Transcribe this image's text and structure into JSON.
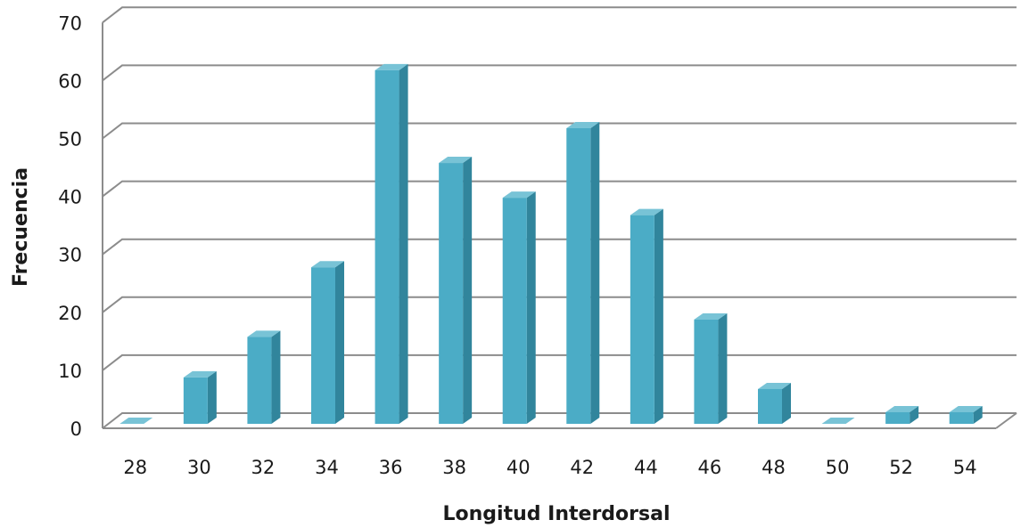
{
  "chart_data": {
    "type": "bar",
    "title": "",
    "xlabel": "Longitud Interdorsal",
    "ylabel": "Frecuencia",
    "categories": [
      "28",
      "30",
      "32",
      "34",
      "36",
      "38",
      "40",
      "42",
      "44",
      "46",
      "48",
      "50",
      "52",
      "54"
    ],
    "values": [
      0,
      8,
      15,
      27,
      61,
      45,
      39,
      51,
      36,
      18,
      6,
      0,
      2,
      2
    ],
    "ylim": [
      0,
      70
    ],
    "yticks": [
      0,
      10,
      20,
      30,
      40,
      50,
      60,
      70
    ],
    "grid": true,
    "legend": "none",
    "style": "3d-column",
    "colors": {
      "front": "#4bacc6",
      "side": "#31859c",
      "top": "#78c3d6",
      "grid": "#8c8c8c"
    }
  }
}
